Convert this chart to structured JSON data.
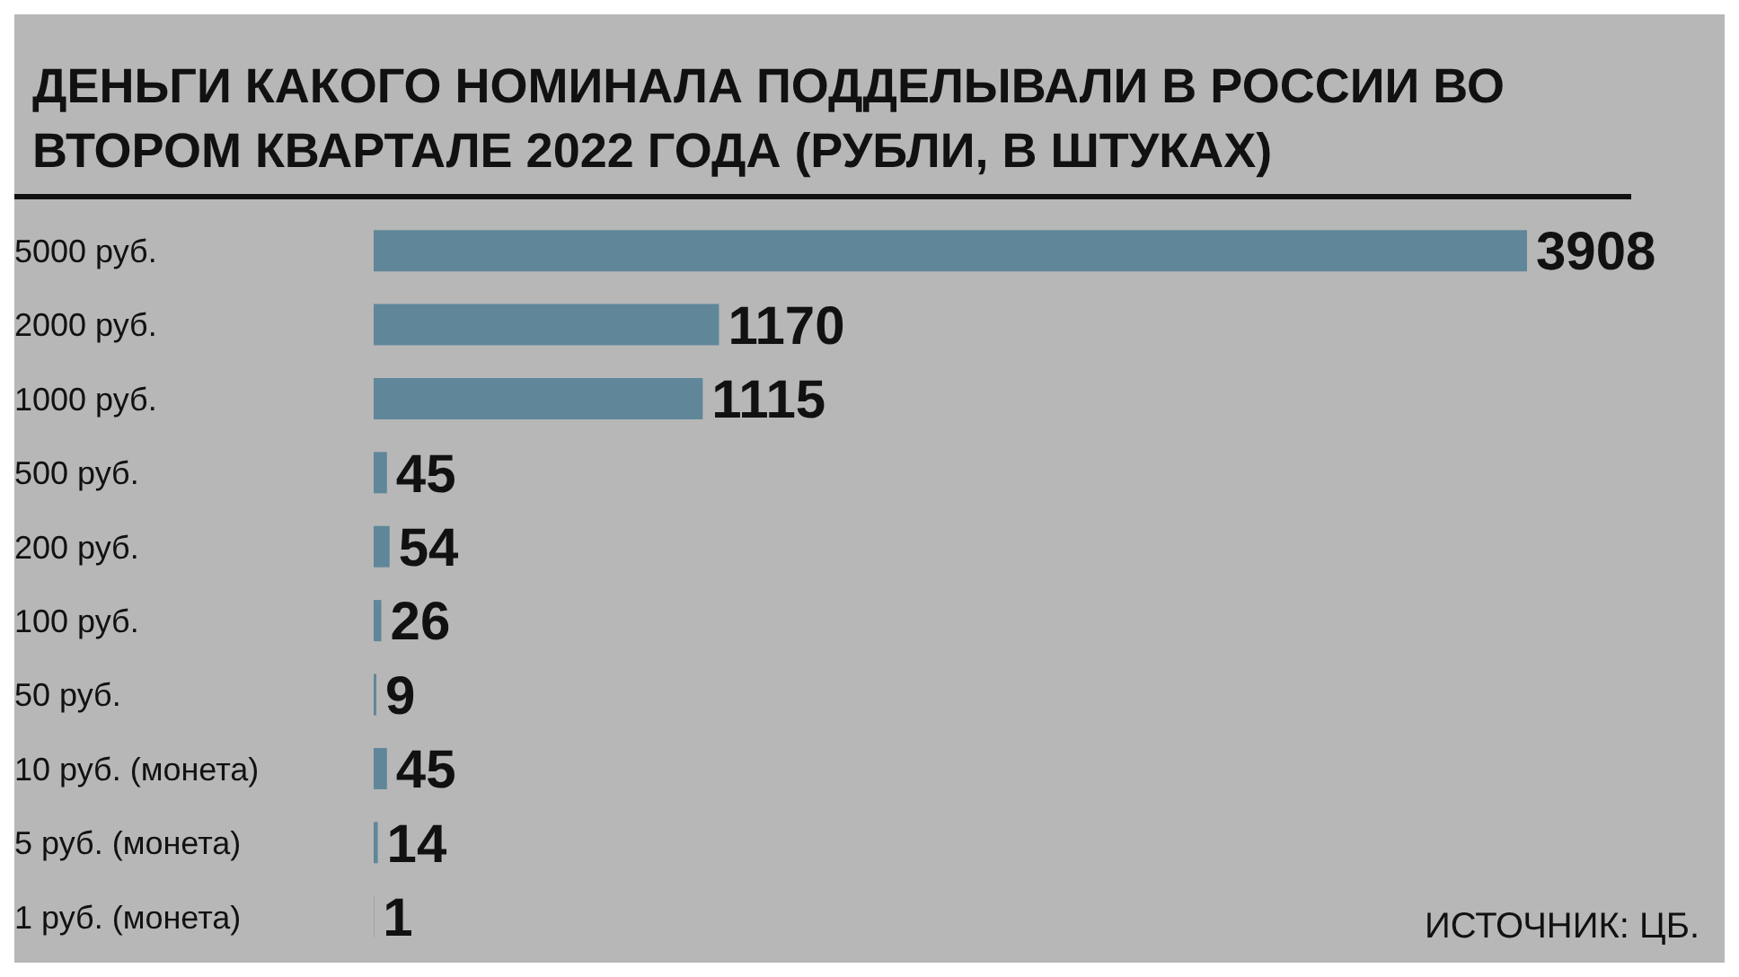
{
  "chart_data": {
    "type": "bar",
    "orientation": "horizontal",
    "title": "ДЕНЬГИ КАКОГО НОМИНАЛА ПОДДЕЛЫВАЛИ В РОССИИ ВО ВТОРОМ КВАРТАЛЕ 2022 ГОДА (РУБЛИ, В ШТУКАХ)",
    "categories": [
      "5000 руб.",
      "2000 руб.",
      "1000 руб.",
      "500 руб.",
      "200 руб.",
      "100 руб.",
      "50 руб.",
      "10 руб. (монета)",
      "5 руб. (монета)",
      "1 руб. (монета)"
    ],
    "values": [
      3908,
      1170,
      1115,
      45,
      54,
      26,
      9,
      45,
      14,
      1
    ],
    "color": "#5f8799",
    "data_labels": true,
    "annotations": [
      "ИСТОЧНИК: ЦБ."
    ]
  }
}
